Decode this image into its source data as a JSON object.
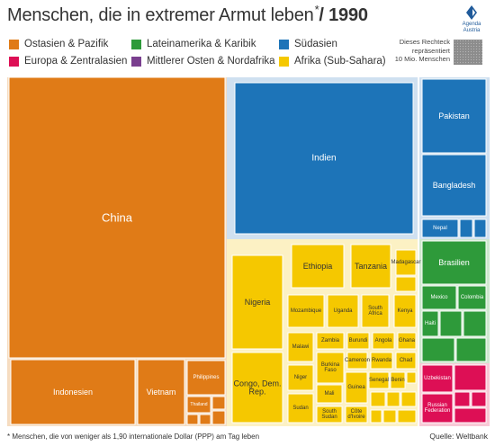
{
  "title": {
    "text": "Menschen, die in extremer Armut leben",
    "asterisk": "*",
    "suffix": "/ 1990"
  },
  "logo": {
    "line1": "Agenda",
    "line2": "Austria",
    "color": "#1f5a9a"
  },
  "legend": [
    {
      "label": "Ostasien & Pazifik",
      "color": "#e07b17"
    },
    {
      "label": "Lateinamerika & Karibik",
      "color": "#2e9a3a"
    },
    {
      "label": "Südasien",
      "color": "#1d74b8"
    },
    {
      "label": "Europa & Zentralasien",
      "color": "#dd0f55"
    },
    {
      "label": "Mittlerer Osten & Nordafrika",
      "color": "#7a3f8f"
    },
    {
      "label": "Afrika (Sub-Sahara)",
      "color": "#f5c800"
    }
  ],
  "scale_note": {
    "line1": "Dieses Rechteck",
    "line2": "repräsentiert",
    "line3": "10 Mio. Menschen"
  },
  "footnote": "* Menschen, die von weniger als 1,90 internationale Dollar (PPP) am Tag leben",
  "source": "Quelle: Weltbank",
  "chart_data": {
    "type": "treemap",
    "title": "Menschen, die in extremer Armut leben / 1990",
    "unit_note": "Rectangle area proportional to people in extreme poverty; small grey square = 10 Mio. Menschen",
    "colors": {
      "ostasien": "#e07b17",
      "lateinamerika": "#2e9a3a",
      "suedasien": "#1d74b8",
      "europa": "#dd0f55",
      "nahost": "#7a3f8f",
      "afrika": "#f5c800"
    },
    "regions": [
      {
        "name": "Ostasien & Pazifik",
        "key": "ostasien",
        "items": [
          "China",
          "Indonesien",
          "Vietnam",
          "Philippines",
          "Thailand"
        ]
      },
      {
        "name": "Südasien",
        "key": "suedasien",
        "items": [
          "Indien",
          "Pakistan",
          "Bangladesh",
          "Nepal"
        ]
      },
      {
        "name": "Afrika (Sub-Sahara)",
        "key": "afrika",
        "items": [
          "Nigeria",
          "Ethiopia",
          "Tanzania",
          "Madagascar",
          "Mozambique",
          "Uganda",
          "South Africa",
          "Kenya",
          "Malawi",
          "Zambia",
          "Burundi",
          "Angola",
          "Ghana",
          "Burkina Faso",
          "Cameroon",
          "Rwanda",
          "Chad",
          "Niger",
          "Mali",
          "Guinea",
          "Senegal",
          "Benin",
          "Congo, Dem. Rep.",
          "Sudan",
          "South Sudan",
          "Côte d'Ivoire"
        ]
      },
      {
        "name": "Lateinamerika & Karibik",
        "key": "lateinamerika",
        "items": [
          "Brasilien",
          "Mexico",
          "Colombia",
          "Haiti"
        ]
      },
      {
        "name": "Europa & Zentralasien",
        "key": "europa",
        "items": [
          "Uzbekistan",
          "Russian Federation"
        ]
      }
    ]
  }
}
